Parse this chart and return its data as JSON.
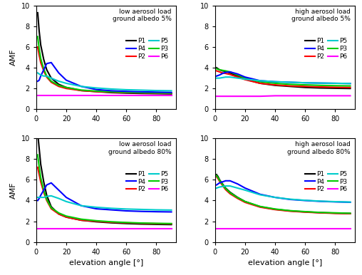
{
  "title": "",
  "xlabel": "elevation angle [°]",
  "ylabel": "AMF",
  "colors": {
    "P1": "#000000",
    "P2": "#ff0000",
    "P3": "#00cc00",
    "P4": "#0000ff",
    "P5": "#00cccc",
    "P6": "#ff00ff"
  },
  "x": [
    1,
    2,
    3,
    5,
    7,
    10,
    15,
    20,
    30,
    40,
    50,
    60,
    70,
    80,
    90
  ],
  "panels": [
    {
      "title_line1": "low aerosol load",
      "title_line2": "ground albedo 5%",
      "ylim": [
        0,
        10
      ],
      "yticks": [
        0,
        2,
        4,
        6,
        8,
        10
      ],
      "data": {
        "P1": [
          9.3,
          7.5,
          6.2,
          4.8,
          3.8,
          3.0,
          2.4,
          2.1,
          1.8,
          1.7,
          1.6,
          1.55,
          1.52,
          1.5,
          1.48
        ],
        "P2": [
          6.0,
          5.2,
          4.5,
          3.7,
          3.1,
          2.6,
          2.2,
          2.0,
          1.8,
          1.7,
          1.65,
          1.6,
          1.58,
          1.55,
          1.52
        ],
        "P3": [
          7.0,
          5.8,
          4.9,
          3.9,
          3.2,
          2.7,
          2.3,
          2.1,
          1.85,
          1.75,
          1.68,
          1.63,
          1.6,
          1.57,
          1.55
        ],
        "P4": [
          2.7,
          2.8,
          3.2,
          3.8,
          4.4,
          4.5,
          3.5,
          2.8,
          2.2,
          1.9,
          1.78,
          1.72,
          1.68,
          1.65,
          1.62
        ],
        "P5": [
          3.5,
          3.4,
          3.3,
          3.2,
          3.2,
          3.0,
          2.7,
          2.5,
          2.2,
          2.05,
          1.95,
          1.88,
          1.84,
          1.8,
          1.78
        ],
        "P6": [
          1.3,
          1.3,
          1.3,
          1.3,
          1.3,
          1.3,
          1.3,
          1.3,
          1.3,
          1.3,
          1.3,
          1.3,
          1.3,
          1.3,
          1.3
        ]
      }
    },
    {
      "title_line1": "high aerosol load",
      "title_line2": "ground albedo 5%",
      "ylim": [
        0,
        10
      ],
      "yticks": [
        0,
        2,
        4,
        6,
        8,
        10
      ],
      "data": {
        "P1": [
          4.0,
          3.9,
          3.8,
          3.7,
          3.65,
          3.5,
          3.2,
          2.9,
          2.5,
          2.3,
          2.2,
          2.1,
          2.05,
          2.02,
          2.0
        ],
        "P2": [
          3.7,
          3.65,
          3.6,
          3.5,
          3.45,
          3.35,
          3.1,
          2.85,
          2.5,
          2.35,
          2.25,
          2.2,
          2.15,
          2.12,
          2.1
        ],
        "P3": [
          3.9,
          3.85,
          3.8,
          3.75,
          3.7,
          3.6,
          3.3,
          3.0,
          2.65,
          2.5,
          2.4,
          2.35,
          2.3,
          2.27,
          2.25
        ],
        "P4": [
          3.2,
          3.25,
          3.3,
          3.45,
          3.55,
          3.6,
          3.4,
          3.1,
          2.75,
          2.65,
          2.6,
          2.55,
          2.52,
          2.5,
          2.48
        ],
        "P5": [
          3.0,
          3.0,
          3.0,
          3.05,
          3.1,
          3.1,
          3.0,
          2.9,
          2.75,
          2.65,
          2.6,
          2.55,
          2.52,
          2.5,
          2.48
        ],
        "P6": [
          1.25,
          1.25,
          1.25,
          1.25,
          1.25,
          1.25,
          1.25,
          1.25,
          1.25,
          1.3,
          1.3,
          1.3,
          1.3,
          1.3,
          1.3
        ]
      }
    },
    {
      "title_line1": "low aerosol load",
      "title_line2": "ground albedo 80%",
      "ylim": [
        0,
        10
      ],
      "yticks": [
        0,
        2,
        4,
        6,
        8,
        10
      ],
      "data": {
        "P1": [
          10.5,
          9.0,
          7.5,
          5.8,
          4.5,
          3.4,
          2.7,
          2.4,
          2.1,
          1.95,
          1.85,
          1.78,
          1.73,
          1.7,
          1.68
        ],
        "P2": [
          7.2,
          6.5,
          5.8,
          4.8,
          4.0,
          3.2,
          2.7,
          2.4,
          2.1,
          2.0,
          1.9,
          1.85,
          1.8,
          1.77,
          1.75
        ],
        "P3": [
          8.4,
          7.2,
          6.2,
          5.0,
          4.1,
          3.3,
          2.8,
          2.5,
          2.2,
          2.05,
          1.95,
          1.88,
          1.83,
          1.8,
          1.78
        ],
        "P4": [
          4.0,
          4.2,
          4.5,
          5.0,
          5.5,
          5.7,
          5.0,
          4.3,
          3.5,
          3.2,
          3.1,
          3.0,
          2.95,
          2.92,
          2.9
        ],
        "P5": [
          4.3,
          4.3,
          4.3,
          4.3,
          4.4,
          4.45,
          4.2,
          3.9,
          3.5,
          3.35,
          3.25,
          3.18,
          3.14,
          3.1,
          3.08
        ],
        "P6": [
          1.3,
          1.3,
          1.3,
          1.3,
          1.3,
          1.3,
          1.3,
          1.3,
          1.3,
          1.3,
          1.3,
          1.3,
          1.3,
          1.3,
          1.3
        ]
      }
    },
    {
      "title_line1": "high aerosol load",
      "title_line2": "ground albedo 80%",
      "ylim": [
        0,
        10
      ],
      "yticks": [
        0,
        2,
        4,
        6,
        8,
        10
      ],
      "data": {
        "P1": [
          6.5,
          6.3,
          6.0,
          5.6,
          5.2,
          4.8,
          4.3,
          3.9,
          3.4,
          3.15,
          3.0,
          2.9,
          2.83,
          2.78,
          2.75
        ],
        "P2": [
          6.3,
          6.1,
          5.85,
          5.45,
          5.05,
          4.65,
          4.2,
          3.82,
          3.36,
          3.12,
          2.97,
          2.88,
          2.81,
          2.76,
          2.73
        ],
        "P3": [
          6.4,
          6.2,
          5.95,
          5.55,
          5.15,
          4.75,
          4.28,
          3.9,
          3.43,
          3.18,
          3.02,
          2.93,
          2.85,
          2.81,
          2.77
        ],
        "P4": [
          5.5,
          5.6,
          5.7,
          5.8,
          5.9,
          5.9,
          5.6,
          5.2,
          4.6,
          4.3,
          4.1,
          4.0,
          3.92,
          3.87,
          3.83
        ],
        "P5": [
          5.2,
          5.25,
          5.3,
          5.35,
          5.4,
          5.4,
          5.2,
          5.0,
          4.55,
          4.3,
          4.13,
          4.02,
          3.94,
          3.89,
          3.85
        ],
        "P6": [
          1.3,
          1.3,
          1.3,
          1.3,
          1.3,
          1.3,
          1.3,
          1.3,
          1.3,
          1.3,
          1.3,
          1.3,
          1.3,
          1.3,
          1.3
        ]
      }
    }
  ],
  "legend_order": [
    "P1",
    "P4",
    "P2",
    "P5",
    "P3",
    "P6"
  ],
  "linewidth": 1.5
}
